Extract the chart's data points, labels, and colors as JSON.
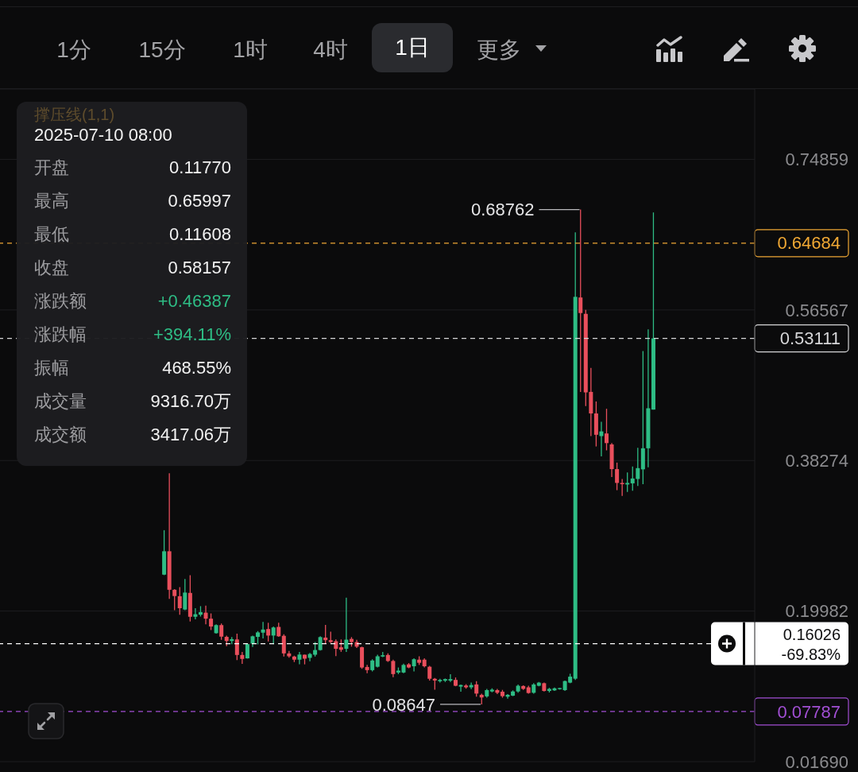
{
  "chart_data": [
    {
      "type": "other",
      "annotations": [
        "1分",
        "15分",
        "1时",
        "4时",
        "1日",
        "更多"
      ]
    },
    {
      "type": "candlestick",
      "categories": [
        null,
        null,
        null,
        null,
        null,
        null,
        null,
        null,
        null,
        null,
        null,
        null,
        null,
        null,
        null,
        null,
        null,
        null,
        null,
        null,
        null,
        null,
        null,
        null,
        null,
        null,
        null,
        null,
        null,
        null,
        null,
        null,
        null,
        null,
        null,
        null,
        null,
        null,
        null,
        null,
        null,
        null,
        null,
        null,
        null,
        null,
        null,
        null,
        null,
        null,
        null,
        null,
        null,
        null,
        null,
        null,
        null,
        null,
        null,
        null,
        null,
        null,
        null,
        null,
        null,
        null,
        null,
        null,
        null,
        null,
        null,
        null,
        null,
        null,
        null,
        null,
        null,
        null,
        null,
        null,
        null,
        null,
        null,
        null,
        null,
        null,
        null,
        null,
        null,
        null,
        null,
        null,
        null,
        null,
        null,
        null,
        null,
        null,
        null,
        null,
        null,
        null,
        null,
        null,
        null,
        null,
        null,
        null,
        null,
        null,
        null,
        null,
        null,
        null,
        null,
        null,
        null,
        null,
        null,
        null,
        null,
        null,
        null,
        null,
        null,
        null,
        null,
        null,
        null,
        null,
        null,
        null,
        null,
        null,
        null,
        null,
        null,
        null,
        null,
        null,
        null,
        null,
        null,
        null,
        null
      ],
      "ohlc": [
        null,
        null,
        null,
        null,
        null,
        null,
        null,
        null,
        null,
        null,
        null,
        null,
        null,
        null,
        null,
        null,
        null,
        null,
        null,
        null,
        null,
        null,
        null,
        null,
        null,
        null,
        null,
        null,
        null,
        null,
        null,
        [
          0.2441,
          0.2981,
          0.2435,
          0.2725
        ],
        [
          0.2725,
          0.3673,
          0.2147,
          0.2257
        ],
        [
          0.2257,
          0.2265,
          0.2008,
          0.2181
        ],
        [
          0.2179,
          0.2289,
          0.1954,
          0.2033
        ],
        [
          0.2017,
          0.2387,
          0.2008,
          0.2223
        ],
        [
          0.2219,
          0.2434,
          0.1872,
          0.1929
        ],
        [
          0.1929,
          0.2033,
          0.1897,
          0.196
        ],
        [
          0.1954,
          0.2058,
          0.1932,
          0.1986
        ],
        [
          0.1979,
          0.2065,
          0.1837,
          0.1906
        ],
        [
          0.1906,
          0.197,
          0.1768,
          0.1811
        ],
        [
          0.173,
          0.1837,
          0.1723,
          0.1828
        ],
        [
          0.1828,
          0.1847,
          0.1648,
          0.1688
        ],
        [
          0.1685,
          0.1701,
          0.1572,
          0.1635
        ],
        [
          0.1635,
          0.1682,
          0.1597,
          0.1657
        ],
        [
          0.1654,
          0.1723,
          0.1404,
          0.1465
        ],
        [
          0.1465,
          0.1503,
          0.1357,
          0.1417
        ],
        [
          0.1424,
          0.1607,
          0.1421,
          0.1597
        ],
        [
          0.1603,
          0.1701,
          0.1562,
          0.1692
        ],
        [
          0.1685,
          0.1755,
          0.1594,
          0.1739
        ],
        [
          0.1736,
          0.1866,
          0.1667,
          0.1774
        ],
        [
          0.178,
          0.1856,
          0.1629,
          0.1701
        ],
        [
          0.1701,
          0.1811,
          0.1597,
          0.1799
        ],
        [
          0.1806,
          0.1856,
          0.1685,
          0.1692
        ],
        [
          0.1698,
          0.1717,
          0.1446,
          0.1484
        ],
        [
          0.1484,
          0.1515,
          0.1433,
          0.1449
        ],
        [
          0.1446,
          0.1456,
          0.1379,
          0.1408
        ],
        [
          0.1408,
          0.1503,
          0.1351,
          0.147
        ],
        [
          0.1468,
          0.147,
          0.1351,
          0.142
        ],
        [
          0.143,
          0.1489,
          0.1389,
          0.1477
        ],
        [
          0.1468,
          0.1622,
          0.1446,
          0.1525
        ],
        [
          0.1525,
          0.1692,
          0.1518,
          0.1682
        ],
        [
          0.1676,
          0.1831,
          0.1603,
          0.1645
        ],
        [
          0.1645,
          0.1749,
          0.161,
          0.1622
        ],
        [
          0.1632,
          0.1654,
          0.1452,
          0.154
        ],
        [
          0.1559,
          0.1654,
          0.1503,
          0.1528
        ],
        [
          0.154,
          0.2162,
          0.1503,
          0.1651
        ],
        [
          0.166,
          0.1682,
          0.1566,
          0.1622
        ],
        [
          0.1622,
          0.1648,
          0.155,
          0.1566
        ],
        [
          0.1559,
          0.1566,
          0.1297,
          0.1313
        ],
        [
          0.1319,
          0.1344,
          0.1243,
          0.1281
        ],
        [
          0.1281,
          0.1413,
          0.1266,
          0.1398
        ],
        [
          0.1322,
          0.1468,
          0.1313,
          0.1449
        ],
        [
          0.1446,
          0.1503,
          0.1439,
          0.1462
        ],
        [
          0.1465,
          0.1484,
          0.1382,
          0.1392
        ],
        [
          0.1392,
          0.1408,
          0.1195,
          0.1233
        ],
        [
          0.1252,
          0.1313,
          0.1233,
          0.1275
        ],
        [
          0.1252,
          0.136,
          0.1243,
          0.1344
        ],
        [
          0.1351,
          0.1366,
          0.1304,
          0.1313
        ],
        [
          0.1328,
          0.1424,
          0.1266,
          0.1413
        ],
        [
          0.1408,
          0.1449,
          0.1344,
          0.137
        ],
        [
          0.1408,
          0.1424,
          0.1313,
          0.1328
        ],
        [
          0.1322,
          0.1334,
          0.1155,
          0.1176
        ],
        [
          0.1176,
          0.1185,
          0.1044,
          0.1155
        ],
        [
          0.1146,
          0.1176,
          0.1131,
          0.1162
        ],
        [
          0.1153,
          0.1179,
          0.1137,
          0.1172
        ],
        [
          0.1153,
          0.1231,
          0.1137,
          0.1172
        ],
        [
          0.1162,
          0.1192,
          0.1085,
          0.1091
        ],
        [
          0.1081,
          0.1107,
          0.1019,
          0.11
        ],
        [
          0.1094,
          0.111,
          0.1056,
          0.1072
        ],
        [
          0.1072,
          0.1131,
          0.105,
          0.11
        ],
        [
          0.1107,
          0.1146,
          0.0958,
          0.0996
        ],
        [
          0.0981,
          0.0996,
          0.08647,
          0.0949
        ],
        [
          0.0962,
          0.1053,
          0.0946,
          0.1038
        ],
        [
          0.1022,
          0.106,
          0.1012,
          0.1044
        ],
        [
          0.1038,
          0.1053,
          0.0991,
          0.1006
        ],
        [
          0.1019,
          0.1041,
          0.0946,
          0.0965
        ],
        [
          0.0958,
          0.0991,
          0.0934,
          0.0981
        ],
        [
          0.0971,
          0.1035,
          0.0965,
          0.1022
        ],
        [
          0.1022,
          0.1107,
          0.1006,
          0.1091
        ],
        [
          0.1088,
          0.1097,
          0.1041,
          0.1053
        ],
        [
          0.1072,
          0.1091,
          0.0996,
          0.1003
        ],
        [
          0.1006,
          0.1122,
          0.0996,
          0.1107
        ],
        [
          0.1091,
          0.1138,
          0.1085,
          0.1129
        ],
        [
          0.1122,
          0.1129,
          0.1022,
          0.1028
        ],
        [
          0.1028,
          0.1066,
          0.1009,
          0.1053
        ],
        [
          0.1035,
          0.1069,
          0.1028,
          0.106
        ],
        [
          0.105,
          0.1066,
          0.1044,
          0.1063
        ],
        [
          0.1038,
          0.1155,
          0.1028,
          0.1148
        ],
        [
          0.1129,
          0.1237,
          0.1122,
          0.1202
        ],
        [
          0.1177,
          0.65997,
          0.11608,
          0.58157
        ],
        [
          0.5808,
          0.68762,
          0.4661,
          0.5619
        ],
        [
          0.5609,
          0.5657,
          0.4488,
          0.4655
        ],
        [
          0.4661,
          0.4952,
          0.4124,
          0.4399
        ],
        [
          0.4399,
          0.4545,
          0.3998,
          0.414
        ],
        [
          0.4124,
          0.4298,
          0.3878,
          0.4181
        ],
        [
          0.4156,
          0.4456,
          0.3951,
          0.4039
        ],
        [
          0.4023,
          0.4039,
          0.3626,
          0.3723
        ],
        [
          0.3723,
          0.3802,
          0.3467,
          0.3555
        ],
        [
          0.3555,
          0.3603,
          0.3398,
          0.354
        ],
        [
          0.3536,
          0.3682,
          0.3445,
          0.3555
        ],
        [
          0.355,
          0.3754,
          0.3461,
          0.3609
        ],
        [
          0.3603,
          0.3982,
          0.3517,
          0.3735
        ],
        [
          0.372,
          0.5157,
          0.354,
          0.3976
        ],
        [
          0.3976,
          0.542,
          0.3745,
          0.4462
        ],
        [
          0.4446,
          0.6841,
          0.4446,
          0.53111
        ],
        null,
        null,
        null,
        null,
        null,
        null,
        null,
        null,
        null,
        null,
        null,
        null,
        null,
        null,
        null,
        null,
        null,
        null,
        null
      ],
      "colors": [
        null,
        null,
        null,
        null,
        null,
        null,
        null,
        null,
        null,
        null,
        null,
        null,
        null,
        null,
        null,
        null,
        null,
        null,
        null,
        null,
        null,
        null,
        null,
        null,
        null,
        null,
        null,
        null,
        null,
        null,
        null,
        "#2ebd85",
        "#e94f5c",
        "#e94f5c",
        "#e94f5c",
        "#2ebd85",
        "#e94f5c",
        "#2ebd85",
        "#2ebd85",
        "#e94f5c",
        "#e94f5c",
        "#2ebd85",
        "#e94f5c",
        "#e94f5c",
        "#2ebd85",
        "#e94f5c",
        "#e94f5c",
        "#2ebd85",
        "#2ebd85",
        "#2ebd85",
        "#2ebd85",
        "#e94f5c",
        "#2ebd85",
        "#e94f5c",
        "#e94f5c",
        "#e94f5c",
        "#e94f5c",
        "#2ebd85",
        "#e94f5c",
        "#2ebd85",
        "#2ebd85",
        "#2ebd85",
        "#e94f5c",
        "#e94f5c",
        "#e94f5c",
        "#e94f5c",
        "#2ebd85",
        "#e94f5c",
        "#e94f5c",
        "#e94f5c",
        "#e94f5c",
        "#2ebd85",
        "#2ebd85",
        "#2ebd85",
        "#e94f5c",
        "#e94f5c",
        "#2ebd85",
        "#2ebd85",
        "#e94f5c",
        "#2ebd85",
        "#e94f5c",
        "#e94f5c",
        "#e94f5c",
        "#e94f5c",
        "#2ebd85",
        "#2ebd85",
        "#2ebd85",
        "#e94f5c",
        "#2ebd85",
        "#e94f5c",
        "#2ebd85",
        "#e94f5c",
        "#e94f5c",
        "#2ebd85",
        "#2ebd85",
        "#e94f5c",
        "#e94f5c",
        "#2ebd85",
        "#2ebd85",
        "#2ebd85",
        "#e94f5c",
        "#e94f5c",
        "#2ebd85",
        "#2ebd85",
        "#e94f5c",
        "#2ebd85",
        "#2ebd85",
        "#2ebd85",
        "#2ebd85",
        "#2ebd85",
        "#2ebd85",
        "#e94f5c",
        "#e94f5c",
        "#e94f5c",
        "#e94f5c",
        "#2ebd85",
        "#e94f5c",
        "#e94f5c",
        "#e94f5c",
        "#e94f5c",
        "#2ebd85",
        "#2ebd85",
        "#2ebd85",
        "#2ebd85",
        "#2ebd85",
        "#2ebd85",
        null,
        null,
        null,
        null,
        null,
        null,
        null,
        null,
        null,
        null,
        null,
        null,
        null,
        null,
        null,
        null,
        null,
        null,
        null
      ],
      "ylim": [
        0.0169,
        0.834
      ],
      "yticks": [
        {
          "value": 0.0169,
          "label": "0.01690"
        },
        0.19982,
        0.38274,
        0.56567,
        0.74859
      ],
      "grid": "y",
      "tick_labels": "y",
      "ref_lines": [
        {
          "axis": "y",
          "value": 0.64684,
          "label": "0.64684",
          "color": "#f0a834",
          "line_style": "dashed"
        },
        {
          "axis": "y",
          "value": 0.53111,
          "label": "0.53111",
          "color": "#d6d6d8",
          "line_style": "dashed"
        },
        {
          "axis": "y",
          "value": 0.16026,
          "label": "0.16026",
          "color": "#ffffff",
          "line_style": "dashed"
        },
        {
          "axis": "y",
          "value": 0.07787,
          "label": "0.07787",
          "color": "#a24fd4",
          "line_style": "dashed"
        }
      ],
      "annotations": [
        "撑压线(1,1)",
        "0.68762",
        "0.08647",
        "-69.83%"
      ]
    },
    {
      "type": "other",
      "annotations": [
        "2025-07-10 08:00",
        "开盘",
        "0.11770",
        "最高",
        "0.65997",
        "最低",
        "0.11608",
        "收盘",
        "0.58157",
        "涨跌额",
        "+0.46387",
        "涨跌幅",
        "+394.11%",
        "振幅",
        "468.55%",
        "成交量",
        "9316.70万",
        "成交额",
        "3417.06万"
      ]
    }
  ]
}
